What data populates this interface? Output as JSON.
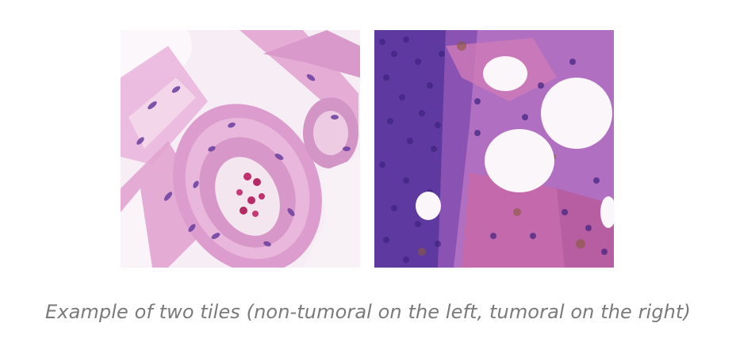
{
  "figure": {
    "caption": "Example of two tiles (non-tumoral on the left, tumoral on the right)",
    "tiles": [
      {
        "label": "non-tumoral",
        "position": "left"
      },
      {
        "label": "tumoral",
        "position": "right"
      }
    ]
  },
  "colors": {
    "caption": "#7a7a7a",
    "stroma_pink": "#e7a8d6",
    "nucleus_purple": "#5b2f9a",
    "background_white": "#ffffff"
  }
}
